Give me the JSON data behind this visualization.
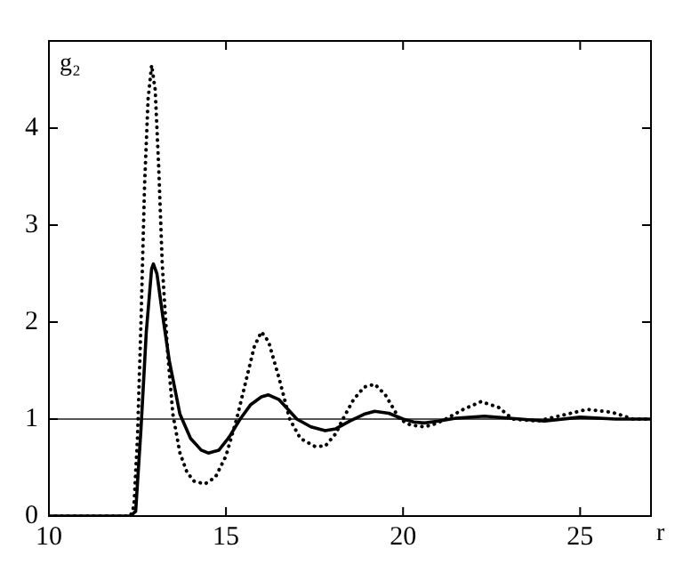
{
  "chart_data": {
    "type": "line",
    "xlabel": "r",
    "ylabel": "g₂",
    "xlim": [
      10,
      27
    ],
    "ylim": [
      0,
      4.9
    ],
    "xticks": [
      10,
      15,
      20,
      25
    ],
    "yticks": [
      0,
      1,
      2,
      3,
      4
    ],
    "grid": false,
    "legend": false,
    "marker": "none",
    "series": [
      {
        "color": "#000000",
        "line_style": "solid",
        "x": [
          10,
          12.3,
          12.45,
          12.6,
          12.75,
          12.9,
          12.95,
          13.05,
          13.2,
          13.4,
          13.7,
          14,
          14.3,
          14.5,
          14.8,
          15.1,
          15.4,
          15.7,
          16,
          16.2,
          16.5,
          16.8,
          17,
          17.4,
          17.8,
          18.1,
          18.5,
          18.9,
          19.2,
          19.6,
          20,
          20.3,
          20.6,
          21,
          21.5,
          22.3,
          23,
          24,
          25,
          26,
          27
        ],
        "values": [
          0,
          0,
          0.05,
          0.9,
          1.9,
          2.55,
          2.6,
          2.5,
          2.1,
          1.6,
          1.05,
          0.8,
          0.68,
          0.65,
          0.68,
          0.82,
          1,
          1.15,
          1.23,
          1.25,
          1.2,
          1.08,
          1,
          0.92,
          0.88,
          0.9,
          0.98,
          1.05,
          1.08,
          1.06,
          1,
          0.97,
          0.96,
          0.98,
          1.01,
          1.03,
          1.01,
          0.98,
          1.02,
          1,
          1
        ]
      },
      {
        "color": "#000000",
        "line_style": "dotted",
        "x": [
          10,
          12.3,
          12.4,
          12.5,
          12.6,
          12.7,
          12.8,
          12.9,
          13,
          13.1,
          13.2,
          13.35,
          13.5,
          13.7,
          13.9,
          14.1,
          14.4,
          14.7,
          15,
          15.3,
          15.6,
          15.8,
          16,
          16.2,
          16.5,
          16.8,
          17.1,
          17.5,
          17.8,
          18.1,
          18.3,
          18.6,
          18.9,
          19.2,
          19.5,
          19.9,
          20.2,
          20.6,
          20.9,
          21.2,
          21.7,
          22.2,
          22.7,
          23.1,
          23.8,
          24.5,
          25.2,
          25.9,
          26.5,
          27
        ],
        "values": [
          0,
          0,
          0.1,
          0.8,
          2,
          3.4,
          4.3,
          4.65,
          4.4,
          3.6,
          2.6,
          1.7,
          1.05,
          0.65,
          0.45,
          0.36,
          0.33,
          0.4,
          0.62,
          1,
          1.45,
          1.75,
          1.9,
          1.8,
          1.42,
          1,
          0.8,
          0.72,
          0.72,
          0.85,
          1,
          1.2,
          1.33,
          1.36,
          1.25,
          1,
          0.94,
          0.92,
          0.95,
          1,
          1.1,
          1.18,
          1.12,
          1,
          0.98,
          1.04,
          1.1,
          1.07,
          1,
          1
        ]
      }
    ],
    "ref_lines": [
      {
        "axis": "y",
        "value": 1,
        "color": "#555555"
      }
    ]
  }
}
